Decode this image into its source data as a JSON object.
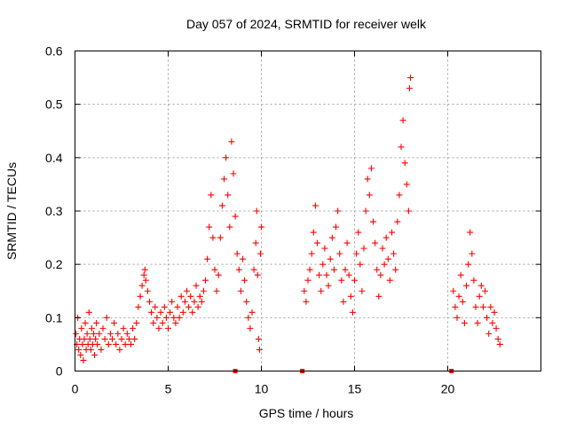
{
  "chart_data": {
    "type": "scatter",
    "title": "Day 057 of 2024, SRMTID for receiver welk",
    "xlabel": "GPS time / hours",
    "ylabel": "SRMTID / TECUs",
    "xlim": [
      0,
      25
    ],
    "ylim": [
      0,
      0.6
    ],
    "xticks": [
      0,
      5,
      10,
      15,
      20
    ],
    "xtick_labels": [
      "0",
      "5",
      "10",
      "15",
      "20"
    ],
    "yticks": [
      0,
      0.1,
      0.2,
      0.3,
      0.4,
      0.5,
      0.6
    ],
    "ytick_labels": [
      "0",
      "0.1",
      "0.2",
      "0.3",
      "0.4",
      "0.5",
      "0.6"
    ],
    "grid": true,
    "marker": "plus",
    "color": "#ff0000",
    "series": [
      {
        "name": "SRMTID",
        "points": [
          [
            0.05,
            0.07
          ],
          [
            0.1,
            0.05
          ],
          [
            0.15,
            0.1
          ],
          [
            0.2,
            0.04
          ],
          [
            0.25,
            0.06
          ],
          [
            0.3,
            0.03
          ],
          [
            0.35,
            0.08
          ],
          [
            0.4,
            0.05
          ],
          [
            0.45,
            0.02
          ],
          [
            0.5,
            0.06
          ],
          [
            0.55,
            0.09
          ],
          [
            0.6,
            0.04
          ],
          [
            0.65,
            0.07
          ],
          [
            0.7,
            0.05
          ],
          [
            0.75,
            0.11
          ],
          [
            0.8,
            0.06
          ],
          [
            0.85,
            0.04
          ],
          [
            0.9,
            0.08
          ],
          [
            0.95,
            0.05
          ],
          [
            1.0,
            0.07
          ],
          [
            1.05,
            0.03
          ],
          [
            1.1,
            0.06
          ],
          [
            1.15,
            0.09
          ],
          [
            1.2,
            0.05
          ],
          [
            1.3,
            0.07
          ],
          [
            1.4,
            0.04
          ],
          [
            1.5,
            0.08
          ],
          [
            1.6,
            0.06
          ],
          [
            1.7,
            0.1
          ],
          [
            1.8,
            0.05
          ],
          [
            1.9,
            0.07
          ],
          [
            2.0,
            0.06
          ],
          [
            2.1,
            0.09
          ],
          [
            2.2,
            0.05
          ],
          [
            2.3,
            0.07
          ],
          [
            2.4,
            0.04
          ],
          [
            2.5,
            0.06
          ],
          [
            2.6,
            0.08
          ],
          [
            2.7,
            0.05
          ],
          [
            2.8,
            0.07
          ],
          [
            2.9,
            0.06
          ],
          [
            3.0,
            0.05
          ],
          [
            3.1,
            0.08
          ],
          [
            3.2,
            0.06
          ],
          [
            3.3,
            0.09
          ],
          [
            3.4,
            0.12
          ],
          [
            3.5,
            0.14
          ],
          [
            3.6,
            0.16
          ],
          [
            3.7,
            0.18
          ],
          [
            3.75,
            0.19
          ],
          [
            3.8,
            0.17
          ],
          [
            3.9,
            0.15
          ],
          [
            4.0,
            0.13
          ],
          [
            4.1,
            0.11
          ],
          [
            4.2,
            0.09
          ],
          [
            4.3,
            0.12
          ],
          [
            4.4,
            0.1
          ],
          [
            4.5,
            0.08
          ],
          [
            4.6,
            0.11
          ],
          [
            4.7,
            0.09
          ],
          [
            4.8,
            0.12
          ],
          [
            4.9,
            0.1
          ],
          [
            5.0,
            0.08
          ],
          [
            5.1,
            0.11
          ],
          [
            5.2,
            0.13
          ],
          [
            5.3,
            0.1
          ],
          [
            5.4,
            0.09
          ],
          [
            5.5,
            0.12
          ],
          [
            5.6,
            0.1
          ],
          [
            5.7,
            0.14
          ],
          [
            5.8,
            0.11
          ],
          [
            5.9,
            0.13
          ],
          [
            6.0,
            0.15
          ],
          [
            6.1,
            0.12
          ],
          [
            6.2,
            0.14
          ],
          [
            6.3,
            0.11
          ],
          [
            6.4,
            0.13
          ],
          [
            6.5,
            0.16
          ],
          [
            6.6,
            0.12
          ],
          [
            6.7,
            0.14
          ],
          [
            6.8,
            0.13
          ],
          [
            6.9,
            0.15
          ],
          [
            7.0,
            0.17
          ],
          [
            7.1,
            0.21
          ],
          [
            7.2,
            0.27
          ],
          [
            7.3,
            0.33
          ],
          [
            7.4,
            0.25
          ],
          [
            7.5,
            0.19
          ],
          [
            7.6,
            0.15
          ],
          [
            7.7,
            0.18
          ],
          [
            7.8,
            0.25
          ],
          [
            7.9,
            0.31
          ],
          [
            8.0,
            0.36
          ],
          [
            8.1,
            0.4
          ],
          [
            8.2,
            0.33
          ],
          [
            8.3,
            0.27
          ],
          [
            8.4,
            0.43
          ],
          [
            8.5,
            0.37
          ],
          [
            8.6,
            0.29
          ],
          [
            8.7,
            0.22
          ],
          [
            8.8,
            0.19
          ],
          [
            8.9,
            0.15
          ],
          [
            9.0,
            0.21
          ],
          [
            9.1,
            0.17
          ],
          [
            9.2,
            0.13
          ],
          [
            9.3,
            0.1
          ],
          [
            9.4,
            0.08
          ],
          [
            9.5,
            0.11
          ],
          [
            9.6,
            0.19
          ],
          [
            9.7,
            0.24
          ],
          [
            9.75,
            0.3
          ],
          [
            9.8,
            0.18
          ],
          [
            9.85,
            0.06
          ],
          [
            9.9,
            0.04
          ],
          [
            9.95,
            0.22
          ],
          [
            10.0,
            0.27
          ],
          [
            12.3,
            0.15
          ],
          [
            12.4,
            0.13
          ],
          [
            12.5,
            0.17
          ],
          [
            12.6,
            0.19
          ],
          [
            12.7,
            0.22
          ],
          [
            12.8,
            0.26
          ],
          [
            12.9,
            0.31
          ],
          [
            13.0,
            0.24
          ],
          [
            13.1,
            0.18
          ],
          [
            13.2,
            0.15
          ],
          [
            13.3,
            0.2
          ],
          [
            13.4,
            0.23
          ],
          [
            13.5,
            0.18
          ],
          [
            13.6,
            0.16
          ],
          [
            13.7,
            0.21
          ],
          [
            13.8,
            0.25
          ],
          [
            13.9,
            0.19
          ],
          [
            14.0,
            0.27
          ],
          [
            14.1,
            0.3
          ],
          [
            14.2,
            0.22
          ],
          [
            14.3,
            0.17
          ],
          [
            14.4,
            0.13
          ],
          [
            14.5,
            0.19
          ],
          [
            14.6,
            0.24
          ],
          [
            14.7,
            0.18
          ],
          [
            14.8,
            0.14
          ],
          [
            14.9,
            0.11
          ],
          [
            15.0,
            0.17
          ],
          [
            15.1,
            0.22
          ],
          [
            15.2,
            0.26
          ],
          [
            15.3,
            0.2
          ],
          [
            15.4,
            0.15
          ],
          [
            15.5,
            0.23
          ],
          [
            15.6,
            0.3
          ],
          [
            15.7,
            0.36
          ],
          [
            15.8,
            0.33
          ],
          [
            15.9,
            0.38
          ],
          [
            16.0,
            0.28
          ],
          [
            16.1,
            0.24
          ],
          [
            16.2,
            0.19
          ],
          [
            16.3,
            0.14
          ],
          [
            16.4,
            0.18
          ],
          [
            16.5,
            0.23
          ],
          [
            16.6,
            0.2
          ],
          [
            16.7,
            0.25
          ],
          [
            16.8,
            0.21
          ],
          [
            16.9,
            0.17
          ],
          [
            17.0,
            0.26
          ],
          [
            17.1,
            0.22
          ],
          [
            17.2,
            0.19
          ],
          [
            17.3,
            0.28
          ],
          [
            17.4,
            0.33
          ],
          [
            17.5,
            0.42
          ],
          [
            17.6,
            0.47
          ],
          [
            17.7,
            0.39
          ],
          [
            17.8,
            0.35
          ],
          [
            17.9,
            0.3
          ],
          [
            17.95,
            0.53
          ],
          [
            18.0,
            0.55
          ],
          [
            20.3,
            0.15
          ],
          [
            20.4,
            0.12
          ],
          [
            20.5,
            0.1
          ],
          [
            20.6,
            0.14
          ],
          [
            20.7,
            0.18
          ],
          [
            20.8,
            0.13
          ],
          [
            20.9,
            0.09
          ],
          [
            21.0,
            0.16
          ],
          [
            21.1,
            0.2
          ],
          [
            21.2,
            0.26
          ],
          [
            21.3,
            0.22
          ],
          [
            21.4,
            0.17
          ],
          [
            21.5,
            0.12
          ],
          [
            21.6,
            0.09
          ],
          [
            21.7,
            0.14
          ],
          [
            21.8,
            0.16
          ],
          [
            21.9,
            0.12
          ],
          [
            22.0,
            0.15
          ],
          [
            22.1,
            0.1
          ],
          [
            22.2,
            0.07
          ],
          [
            22.3,
            0.12
          ],
          [
            22.4,
            0.09
          ],
          [
            22.5,
            0.11
          ],
          [
            22.6,
            0.08
          ],
          [
            22.7,
            0.06
          ],
          [
            22.8,
            0.05
          ]
        ]
      }
    ],
    "zero_markers": [
      8.6,
      12.2,
      20.2
    ]
  }
}
